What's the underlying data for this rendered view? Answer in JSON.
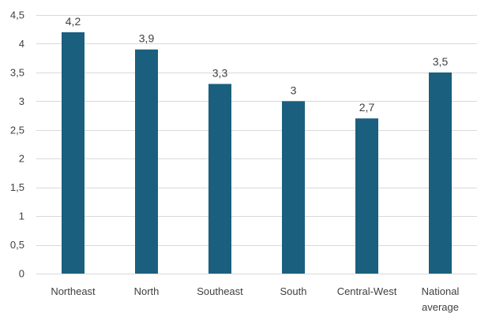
{
  "chart_data": {
    "type": "bar",
    "categories": [
      [
        "Northeast"
      ],
      [
        "North"
      ],
      [
        "Southeast"
      ],
      [
        "South"
      ],
      [
        "Central-West"
      ],
      [
        "National",
        "average"
      ]
    ],
    "values": [
      4.2,
      3.9,
      3.3,
      3.0,
      2.7,
      3.5
    ],
    "value_labels": [
      "4,2",
      "3,9",
      "3,3",
      "3",
      "2,7",
      "3,5"
    ],
    "y_ticks": [
      0,
      0.5,
      1,
      1.5,
      2,
      2.5,
      3,
      3.5,
      4,
      4.5
    ],
    "y_tick_labels": [
      "0",
      "0,5",
      "1",
      "1,5",
      "2",
      "2,5",
      "3",
      "3,5",
      "4",
      "4,5"
    ],
    "ylim": [
      0,
      4.5
    ],
    "grid": true,
    "bar_color": "#1a5f7e",
    "grid_color": "#d9d9d9",
    "text_color": "#404040"
  }
}
